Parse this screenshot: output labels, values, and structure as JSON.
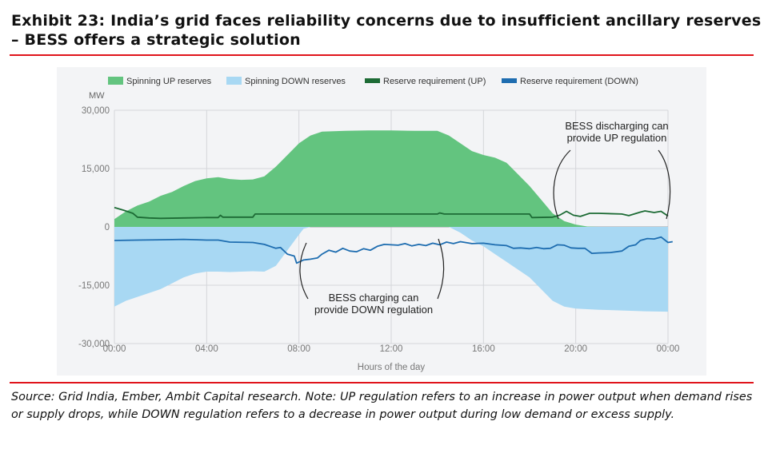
{
  "header": {
    "title": "Exhibit 23: India’s grid faces reliability concerns due to insufficient ancillary reserves – BESS offers a strategic solution"
  },
  "footer": {
    "source": "Source: Grid India, Ember, Ambit Capital research. Note: UP regulation refers to an increase in power output when demand rises or supply drops, while DOWN regulation refers to a decrease in power output during low demand or excess supply."
  },
  "colors": {
    "accent_red": "#e0141b",
    "spinning_up": "#63c47f",
    "spinning_down": "#a8d8f3",
    "req_up": "#1d6b35",
    "req_down": "#1e6db0"
  },
  "chart_data": {
    "type": "area",
    "title": "",
    "xlabel": "Hours of the day",
    "ylabel": "MW",
    "xlim": [
      0,
      24
    ],
    "ylim": [
      -30000,
      30000
    ],
    "x_ticks": [
      {
        "value": 0,
        "label": "00:00"
      },
      {
        "value": 4,
        "label": "04:00"
      },
      {
        "value": 8,
        "label": "08:00"
      },
      {
        "value": 12,
        "label": "12:00"
      },
      {
        "value": 16,
        "label": "16:00"
      },
      {
        "value": 20,
        "label": "20:00"
      },
      {
        "value": 24,
        "label": "00:00"
      }
    ],
    "y_ticks": [
      {
        "value": 30000,
        "label": "30,000"
      },
      {
        "value": 15000,
        "label": "15,000"
      },
      {
        "value": 0,
        "label": "0"
      },
      {
        "value": -15000,
        "label": "-15,000"
      },
      {
        "value": -30000,
        "label": "-30,000"
      }
    ],
    "grid": true,
    "legend_position": "top",
    "series": [
      {
        "name": "Spinning UP reserves",
        "kind": "area",
        "color": "#63c47f",
        "points": [
          [
            0,
            2000
          ],
          [
            0.5,
            4000
          ],
          [
            1,
            5500
          ],
          [
            1.5,
            6500
          ],
          [
            2,
            8000
          ],
          [
            2.5,
            9000
          ],
          [
            3,
            10500
          ],
          [
            3.5,
            11800
          ],
          [
            4,
            12500
          ],
          [
            4.5,
            12800
          ],
          [
            5,
            12300
          ],
          [
            5.5,
            12100
          ],
          [
            6,
            12200
          ],
          [
            6.5,
            13000
          ],
          [
            7,
            15500
          ],
          [
            7.5,
            18500
          ],
          [
            8,
            21500
          ],
          [
            8.5,
            23500
          ],
          [
            9,
            24500
          ],
          [
            10,
            24700
          ],
          [
            11,
            24800
          ],
          [
            12,
            24800
          ],
          [
            13,
            24700
          ],
          [
            14,
            24700
          ],
          [
            14.5,
            23500
          ],
          [
            15,
            21500
          ],
          [
            15.5,
            19500
          ],
          [
            16,
            18500
          ],
          [
            16.5,
            17800
          ],
          [
            17,
            16500
          ],
          [
            17.5,
            13500
          ],
          [
            18,
            10500
          ],
          [
            18.5,
            7000
          ],
          [
            19,
            3500
          ],
          [
            19.5,
            1500
          ],
          [
            20,
            600
          ],
          [
            20.5,
            100
          ],
          [
            21,
            0
          ],
          [
            24,
            0
          ]
        ]
      },
      {
        "name": "Spinning DOWN reserves",
        "kind": "area",
        "color": "#a8d8f3",
        "points": [
          [
            0,
            -20500
          ],
          [
            0.5,
            -19000
          ],
          [
            1,
            -18000
          ],
          [
            1.5,
            -17000
          ],
          [
            2,
            -16000
          ],
          [
            2.5,
            -14500
          ],
          [
            3,
            -13000
          ],
          [
            3.5,
            -12000
          ],
          [
            4,
            -11500
          ],
          [
            4.5,
            -11500
          ],
          [
            5,
            -11600
          ],
          [
            5.5,
            -11500
          ],
          [
            6,
            -11400
          ],
          [
            6.5,
            -11500
          ],
          [
            7,
            -10000
          ],
          [
            7.5,
            -6000
          ],
          [
            8,
            -2000
          ],
          [
            8.2,
            -500
          ],
          [
            8.5,
            0
          ],
          [
            14.5,
            0
          ],
          [
            15,
            -1500
          ],
          [
            15.5,
            -3500
          ],
          [
            16,
            -5000
          ],
          [
            16.5,
            -7000
          ],
          [
            17,
            -9000
          ],
          [
            17.5,
            -11000
          ],
          [
            18,
            -13000
          ],
          [
            18.5,
            -16000
          ],
          [
            19,
            -19000
          ],
          [
            19.5,
            -20500
          ],
          [
            20,
            -21000
          ],
          [
            21,
            -21300
          ],
          [
            22,
            -21500
          ],
          [
            23,
            -21700
          ],
          [
            24,
            -21800
          ]
        ]
      },
      {
        "name": "Reserve requirement (UP)",
        "kind": "line",
        "color": "#1d6b35",
        "points": [
          [
            0,
            5000
          ],
          [
            0.4,
            4300
          ],
          [
            0.8,
            3500
          ],
          [
            1,
            2500
          ],
          [
            1.5,
            2300
          ],
          [
            2,
            2200
          ],
          [
            3,
            2300
          ],
          [
            4,
            2400
          ],
          [
            4.5,
            2400
          ],
          [
            4.6,
            3000
          ],
          [
            4.7,
            2500
          ],
          [
            6,
            2500
          ],
          [
            6.1,
            3300
          ],
          [
            8,
            3300
          ],
          [
            10,
            3300
          ],
          [
            12,
            3300
          ],
          [
            14,
            3300
          ],
          [
            14.1,
            3600
          ],
          [
            14.3,
            3300
          ],
          [
            18,
            3300
          ],
          [
            18.1,
            2400
          ],
          [
            19,
            2500
          ],
          [
            19.3,
            3000
          ],
          [
            19.6,
            4000
          ],
          [
            19.9,
            3000
          ],
          [
            20.2,
            2700
          ],
          [
            20.6,
            3500
          ],
          [
            21,
            3500
          ],
          [
            22,
            3300
          ],
          [
            22.3,
            2900
          ],
          [
            22.8,
            3800
          ],
          [
            23,
            4100
          ],
          [
            23.4,
            3700
          ],
          [
            23.7,
            4000
          ],
          [
            24,
            2800
          ]
        ]
      },
      {
        "name": "Reserve requirement (DOWN)",
        "kind": "line",
        "color": "#1e6db0",
        "points": [
          [
            0,
            -3500
          ],
          [
            1,
            -3400
          ],
          [
            2,
            -3300
          ],
          [
            3,
            -3200
          ],
          [
            4,
            -3400
          ],
          [
            4.5,
            -3400
          ],
          [
            5,
            -3900
          ],
          [
            6,
            -4000
          ],
          [
            6.5,
            -4500
          ],
          [
            7,
            -5500
          ],
          [
            7.2,
            -5300
          ],
          [
            7.5,
            -7000
          ],
          [
            7.8,
            -7500
          ],
          [
            7.9,
            -9300
          ],
          [
            8.2,
            -8500
          ],
          [
            8.5,
            -8300
          ],
          [
            8.8,
            -8000
          ],
          [
            9,
            -7000
          ],
          [
            9.3,
            -6000
          ],
          [
            9.6,
            -6500
          ],
          [
            9.9,
            -5500
          ],
          [
            10.2,
            -6200
          ],
          [
            10.5,
            -6400
          ],
          [
            10.8,
            -5600
          ],
          [
            11.1,
            -6000
          ],
          [
            11.4,
            -5000
          ],
          [
            11.7,
            -4500
          ],
          [
            12,
            -4600
          ],
          [
            12.3,
            -4700
          ],
          [
            12.6,
            -4300
          ],
          [
            12.9,
            -4900
          ],
          [
            13.2,
            -4500
          ],
          [
            13.5,
            -4800
          ],
          [
            13.8,
            -4200
          ],
          [
            14.1,
            -4600
          ],
          [
            14.4,
            -3900
          ],
          [
            14.7,
            -4300
          ],
          [
            15,
            -3800
          ],
          [
            15.5,
            -4300
          ],
          [
            16,
            -4200
          ],
          [
            16.5,
            -4600
          ],
          [
            17,
            -4800
          ],
          [
            17.3,
            -5500
          ],
          [
            17.6,
            -5400
          ],
          [
            18,
            -5600
          ],
          [
            18.3,
            -5300
          ],
          [
            18.6,
            -5600
          ],
          [
            18.9,
            -5500
          ],
          [
            19.2,
            -4600
          ],
          [
            19.5,
            -4700
          ],
          [
            19.8,
            -5400
          ],
          [
            20.1,
            -5500
          ],
          [
            20.4,
            -5500
          ],
          [
            20.7,
            -6800
          ],
          [
            21,
            -6700
          ],
          [
            21.5,
            -6600
          ],
          [
            22,
            -6200
          ],
          [
            22.3,
            -5000
          ],
          [
            22.6,
            -4600
          ],
          [
            22.8,
            -3500
          ],
          [
            23.1,
            -3000
          ],
          [
            23.4,
            -3100
          ],
          [
            23.7,
            -2600
          ],
          [
            24,
            -4000
          ],
          [
            24.2,
            -3800
          ]
        ]
      }
    ],
    "annotations": [
      {
        "text_lines": [
          "BESS discharging can",
          "provide UP regulation"
        ],
        "target": "UP regulation evening window (~19:00–24:00)"
      },
      {
        "text_lines": [
          "BESS charging can",
          "provide DOWN regulation"
        ],
        "target": "DOWN regulation solar window (~08:00–14:00)"
      }
    ]
  }
}
